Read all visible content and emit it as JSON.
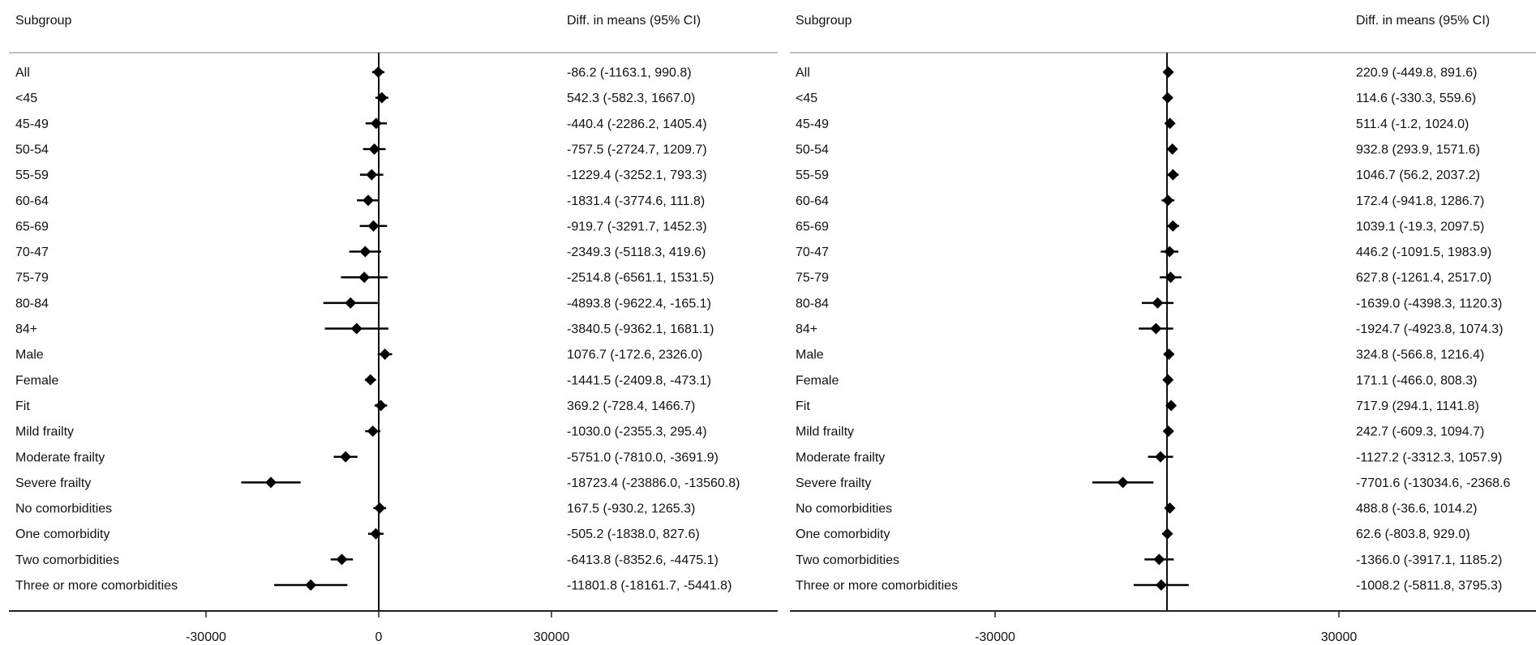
{
  "chart_data": [
    {
      "type": "forest",
      "header": {
        "left": "Subgroup",
        "right": "Diff. in means (95% CI)"
      },
      "x_ticks": [
        -30000,
        0,
        30000
      ],
      "x_tick_labels": [
        "-30000",
        "0",
        "30000"
      ],
      "reference_line": 0,
      "rows": [
        {
          "label": "All",
          "estimate": -86.2,
          "lower": -1163.1,
          "upper": 990.8,
          "ci_text": "-86.2 (-1163.1, 990.8)"
        },
        {
          "label": "<45",
          "estimate": 542.3,
          "lower": -582.3,
          "upper": 1667.0,
          "ci_text": "542.3 (-582.3, 1667.0)"
        },
        {
          "label": "45-49",
          "estimate": -440.4,
          "lower": -2286.2,
          "upper": 1405.4,
          "ci_text": "-440.4 (-2286.2, 1405.4)"
        },
        {
          "label": "50-54",
          "estimate": -757.5,
          "lower": -2724.7,
          "upper": 1209.7,
          "ci_text": "-757.5 (-2724.7, 1209.7)"
        },
        {
          "label": "55-59",
          "estimate": -1229.4,
          "lower": -3252.1,
          "upper": 793.3,
          "ci_text": "-1229.4 (-3252.1, 793.3)"
        },
        {
          "label": "60-64",
          "estimate": -1831.4,
          "lower": -3774.6,
          "upper": 111.8,
          "ci_text": "-1831.4 (-3774.6, 111.8)"
        },
        {
          "label": "65-69",
          "estimate": -919.7,
          "lower": -3291.7,
          "upper": 1452.3,
          "ci_text": "-919.7 (-3291.7, 1452.3)"
        },
        {
          "label": "70-47",
          "estimate": -2349.3,
          "lower": -5118.3,
          "upper": 419.6,
          "ci_text": "-2349.3 (-5118.3, 419.6)"
        },
        {
          "label": "75-79",
          "estimate": -2514.8,
          "lower": -6561.1,
          "upper": 1531.5,
          "ci_text": "-2514.8 (-6561.1, 1531.5)"
        },
        {
          "label": "80-84",
          "estimate": -4893.8,
          "lower": -9622.4,
          "upper": -165.1,
          "ci_text": "-4893.8 (-9622.4, -165.1)"
        },
        {
          "label": "84+",
          "estimate": -3840.5,
          "lower": -9362.1,
          "upper": 1681.1,
          "ci_text": "-3840.5 (-9362.1, 1681.1)"
        },
        {
          "label": "Male",
          "estimate": 1076.7,
          "lower": -172.6,
          "upper": 2326.0,
          "ci_text": "1076.7 (-172.6, 2326.0)"
        },
        {
          "label": "Female",
          "estimate": -1441.5,
          "lower": -2409.8,
          "upper": -473.1,
          "ci_text": "-1441.5 (-2409.8, -473.1)"
        },
        {
          "label": "Fit",
          "estimate": 369.2,
          "lower": -728.4,
          "upper": 1466.7,
          "ci_text": "369.2 (-728.4, 1466.7)"
        },
        {
          "label": "Mild frailty",
          "estimate": -1030.0,
          "lower": -2355.3,
          "upper": 295.4,
          "ci_text": "-1030.0 (-2355.3, 295.4)"
        },
        {
          "label": "Moderate frailty",
          "estimate": -5751.0,
          "lower": -7810.0,
          "upper": -3691.9,
          "ci_text": "-5751.0 (-7810.0, -3691.9)"
        },
        {
          "label": "Severe frailty",
          "estimate": -18723.4,
          "lower": -23886.0,
          "upper": -13560.8,
          "ci_text": "-18723.4 (-23886.0, -13560.8)"
        },
        {
          "label": "No comorbidities",
          "estimate": 167.5,
          "lower": -930.2,
          "upper": 1265.3,
          "ci_text": "167.5 (-930.2, 1265.3)"
        },
        {
          "label": "One comorbidity",
          "estimate": -505.2,
          "lower": -1838.0,
          "upper": 827.6,
          "ci_text": "-505.2 (-1838.0, 827.6)"
        },
        {
          "label": "Two comorbidities",
          "estimate": -6413.8,
          "lower": -8352.6,
          "upper": -4475.1,
          "ci_text": "-6413.8 (-8352.6, -4475.1)"
        },
        {
          "label": "Three or more comorbidities",
          "estimate": -11801.8,
          "lower": -18161.7,
          "upper": -5441.8,
          "ci_text": "-11801.8 (-18161.7, -5441.8)"
        }
      ]
    },
    {
      "type": "forest",
      "header": {
        "left": "Subgroup",
        "right": "Diff. in means (95% CI)"
      },
      "x_ticks": [
        -30000,
        30000
      ],
      "x_tick_labels": [
        "-30000",
        "30000"
      ],
      "reference_line": 0,
      "rows": [
        {
          "label": "All",
          "estimate": 220.9,
          "lower": -449.8,
          "upper": 891.6,
          "ci_text": "220.9 (-449.8, 891.6)"
        },
        {
          "label": "<45",
          "estimate": 114.6,
          "lower": -330.3,
          "upper": 559.6,
          "ci_text": "114.6 (-330.3, 559.6)"
        },
        {
          "label": "45-49",
          "estimate": 511.4,
          "lower": -1.2,
          "upper": 1024.0,
          "ci_text": "511.4 (-1.2, 1024.0)"
        },
        {
          "label": "50-54",
          "estimate": 932.8,
          "lower": 293.9,
          "upper": 1571.6,
          "ci_text": "932.8 (293.9, 1571.6)"
        },
        {
          "label": "55-59",
          "estimate": 1046.7,
          "lower": 56.2,
          "upper": 2037.2,
          "ci_text": "1046.7 (56.2, 2037.2)"
        },
        {
          "label": "60-64",
          "estimate": 172.4,
          "lower": -941.8,
          "upper": 1286.7,
          "ci_text": "172.4 (-941.8, 1286.7)"
        },
        {
          "label": "65-69",
          "estimate": 1039.1,
          "lower": -19.3,
          "upper": 2097.5,
          "ci_text": "1039.1 (-19.3, 2097.5)"
        },
        {
          "label": "70-47",
          "estimate": 446.2,
          "lower": -1091.5,
          "upper": 1983.9,
          "ci_text": "446.2 (-1091.5, 1983.9)"
        },
        {
          "label": "75-79",
          "estimate": 627.8,
          "lower": -1261.4,
          "upper": 2517.0,
          "ci_text": "627.8 (-1261.4, 2517.0)"
        },
        {
          "label": "80-84",
          "estimate": -1639.0,
          "lower": -4398.3,
          "upper": 1120.3,
          "ci_text": "-1639.0 (-4398.3, 1120.3)"
        },
        {
          "label": "84+",
          "estimate": -1924.7,
          "lower": -4923.8,
          "upper": 1074.3,
          "ci_text": "-1924.7 (-4923.8, 1074.3)"
        },
        {
          "label": "Male",
          "estimate": 324.8,
          "lower": -566.8,
          "upper": 1216.4,
          "ci_text": "324.8 (-566.8, 1216.4)"
        },
        {
          "label": "Female",
          "estimate": 171.1,
          "lower": -466.0,
          "upper": 808.3,
          "ci_text": "171.1 (-466.0, 808.3)"
        },
        {
          "label": "Fit",
          "estimate": 717.9,
          "lower": 294.1,
          "upper": 1141.8,
          "ci_text": "717.9 (294.1, 1141.8)"
        },
        {
          "label": "Mild frailty",
          "estimate": 242.7,
          "lower": -609.3,
          "upper": 1094.7,
          "ci_text": "242.7 (-609.3, 1094.7)"
        },
        {
          "label": "Moderate frailty",
          "estimate": -1127.2,
          "lower": -3312.3,
          "upper": 1057.9,
          "ci_text": "-1127.2 (-3312.3, 1057.9)"
        },
        {
          "label": "Severe frailty",
          "estimate": -7701.6,
          "lower": -13034.6,
          "upper": -2368.6,
          "ci_text": "-7701.6 (-13034.6, -2368.6"
        },
        {
          "label": "No comorbidities",
          "estimate": 488.8,
          "lower": -36.6,
          "upper": 1014.2,
          "ci_text": "488.8 (-36.6, 1014.2)"
        },
        {
          "label": "One comorbidity",
          "estimate": 62.6,
          "lower": -803.8,
          "upper": 929.0,
          "ci_text": "62.6 (-803.8, 929.0)"
        },
        {
          "label": "Two comorbidities",
          "estimate": -1366.0,
          "lower": -3917.1,
          "upper": 1185.2,
          "ci_text": "-1366.0 (-3917.1, 1185.2)"
        },
        {
          "label": "Three or more comorbidities",
          "estimate": -1008.2,
          "lower": -5811.8,
          "upper": 3795.3,
          "ci_text": "-1008.2 (-5811.8, 3795.3)"
        }
      ]
    }
  ]
}
